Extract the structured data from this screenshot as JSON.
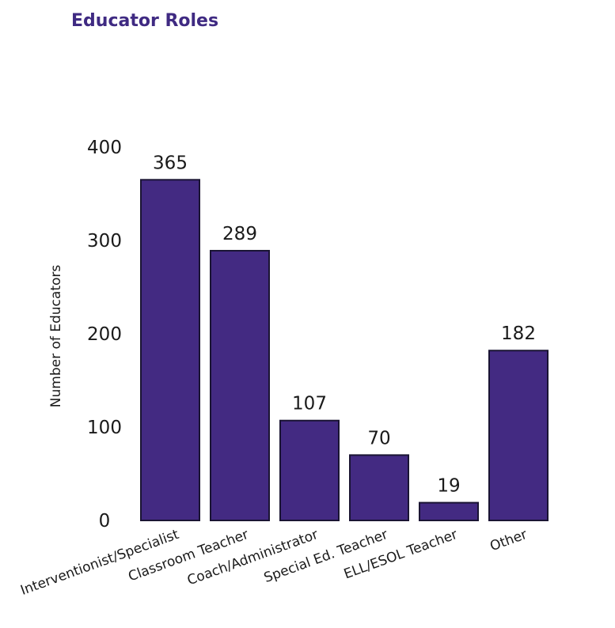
{
  "chart_data": {
    "type": "bar",
    "title": "Educator Roles",
    "ylabel": "Number of Educators",
    "xlabel": "",
    "categories": [
      "Interventionist/Specialist",
      "Classroom Teacher",
      "Coach/Administrator",
      "Special Ed. Teacher",
      "ELL/ESOL Teacher",
      "Other"
    ],
    "values": [
      365,
      289,
      107,
      70,
      19,
      182
    ],
    "data_labels": [
      "365",
      "289",
      "107",
      "70",
      "19",
      "182"
    ],
    "yticks": [
      "0",
      "100",
      "200",
      "300",
      "400"
    ],
    "ylim": [
      0,
      400
    ],
    "grid": false,
    "colors": {
      "bar": "#432a82",
      "bar_edge": "#1a1433",
      "title": "#3f2a82"
    }
  }
}
